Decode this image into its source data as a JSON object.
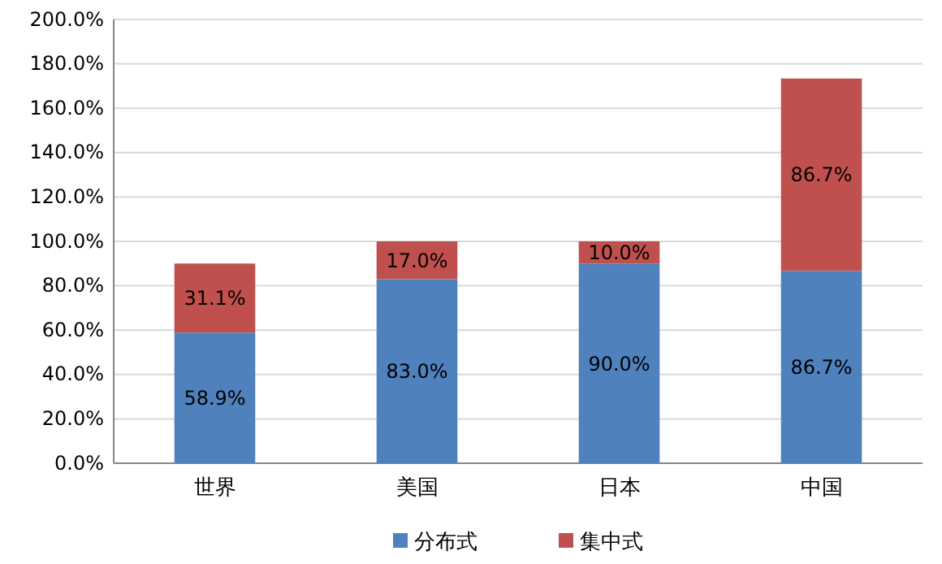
{
  "chart_data": {
    "type": "bar",
    "stacked": true,
    "categories": [
      "世界",
      "美国",
      "日本",
      "中国"
    ],
    "series": [
      {
        "name": "分布式",
        "color": "#4f81bd",
        "values": [
          58.9,
          83.0,
          90.0,
          86.7
        ],
        "value_labels": [
          "58.9%",
          "83.0%",
          "90.0%",
          "86.7%"
        ]
      },
      {
        "name": "集中式",
        "color": "#c0504d",
        "values": [
          31.1,
          17.0,
          10.0,
          86.7
        ],
        "value_labels": [
          "31.1%",
          "17.0%",
          "10.0%",
          "86.7%"
        ]
      }
    ],
    "ylim": [
      0,
      200
    ],
    "yticks": [
      {
        "value": 0,
        "label": "0.0%"
      },
      {
        "value": 20,
        "label": "20.0%"
      },
      {
        "value": 40,
        "label": "40.0%"
      },
      {
        "value": 60,
        "label": "60.0%"
      },
      {
        "value": 80,
        "label": "80.0%"
      },
      {
        "value": 100,
        "label": "100.0%"
      },
      {
        "value": 120,
        "label": "120.0%"
      },
      {
        "value": 140,
        "label": "140.0%"
      },
      {
        "value": 160,
        "label": "160.0%"
      },
      {
        "value": 180,
        "label": "180.0%"
      },
      {
        "value": 200,
        "label": "200.0%"
      }
    ],
    "grid": "y",
    "legend": "bottom"
  }
}
